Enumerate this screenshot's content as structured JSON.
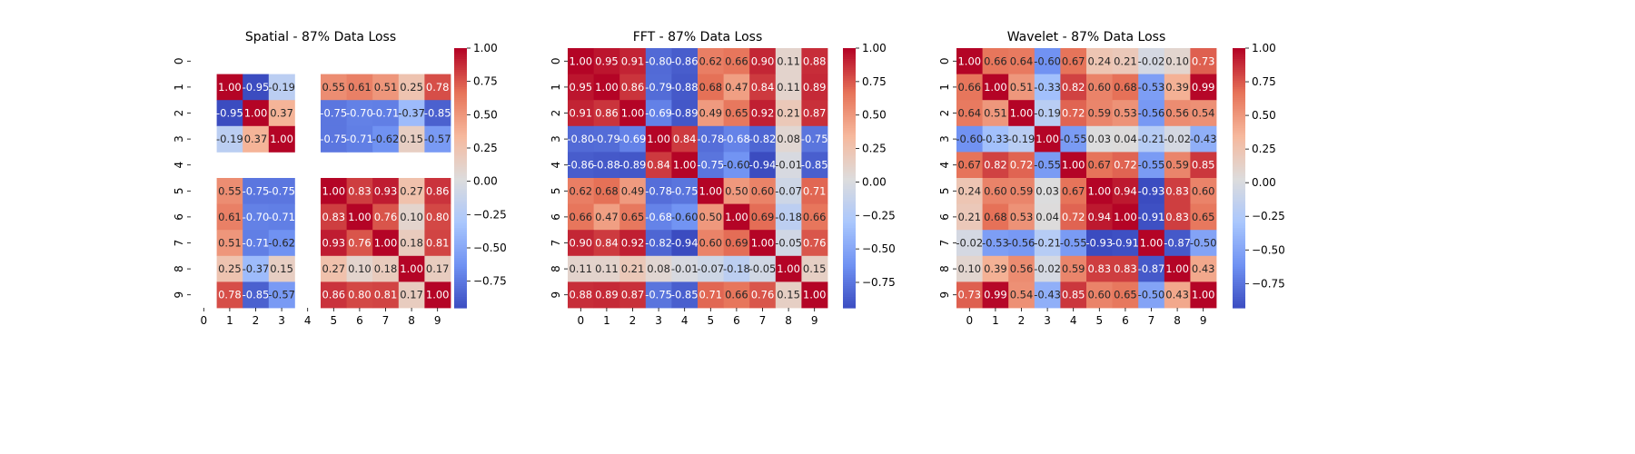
{
  "figure": {
    "background": "#ffffff",
    "colormap": "coolwarm",
    "colormap_stops": [
      "#3b4cc0",
      "#6f91f2",
      "#aac7fd",
      "#dddcdc",
      "#f6b89c",
      "#e67258",
      "#b40426"
    ]
  },
  "chart_data": [
    {
      "type": "heatmap",
      "title": "Spatial - 87% Data Loss",
      "x_tick_labels": [
        "0",
        "1",
        "2",
        "3",
        "4",
        "5",
        "6",
        "7",
        "8",
        "9"
      ],
      "y_tick_labels": [
        "0",
        "1",
        "2",
        "3",
        "4",
        "5",
        "6",
        "7",
        "8",
        "9"
      ],
      "annotation_format": "2 decimals",
      "vmin": -0.95,
      "vmax": 1.0,
      "colorbar_ticks": [
        -0.75,
        -0.5,
        -0.25,
        0.0,
        0.25,
        0.5,
        0.75,
        1.0
      ],
      "colorbar_tick_labels": [
        "−0.75",
        "−0.50",
        "−0.25",
        "0.00",
        "0.25",
        "0.50",
        "0.75",
        "1.00"
      ],
      "matrix": [
        [
          null,
          null,
          null,
          null,
          null,
          null,
          null,
          null,
          null,
          null
        ],
        [
          null,
          1.0,
          -0.95,
          -0.19,
          null,
          0.55,
          0.61,
          0.51,
          0.25,
          0.78
        ],
        [
          null,
          -0.95,
          1.0,
          0.37,
          null,
          -0.75,
          -0.7,
          -0.71,
          -0.37,
          -0.85
        ],
        [
          null,
          -0.19,
          0.37,
          1.0,
          null,
          -0.75,
          -0.71,
          -0.62,
          0.15,
          -0.57
        ],
        [
          null,
          null,
          null,
          null,
          null,
          null,
          null,
          null,
          null,
          null
        ],
        [
          null,
          0.55,
          -0.75,
          -0.75,
          null,
          1.0,
          0.83,
          0.93,
          0.27,
          0.86
        ],
        [
          null,
          0.61,
          -0.7,
          -0.71,
          null,
          0.83,
          1.0,
          0.76,
          0.1,
          0.8
        ],
        [
          null,
          0.51,
          -0.71,
          -0.62,
          null,
          0.93,
          0.76,
          1.0,
          0.18,
          0.81
        ],
        [
          null,
          0.25,
          -0.37,
          0.15,
          null,
          0.27,
          0.1,
          0.18,
          1.0,
          0.17
        ],
        [
          null,
          0.78,
          -0.85,
          -0.57,
          null,
          0.86,
          0.8,
          0.81,
          0.17,
          1.0
        ]
      ]
    },
    {
      "type": "heatmap",
      "title": "FFT - 87% Data Loss",
      "x_tick_labels": [
        "0",
        "1",
        "2",
        "3",
        "4",
        "5",
        "6",
        "7",
        "8",
        "9"
      ],
      "y_tick_labels": [
        "0",
        "1",
        "2",
        "3",
        "4",
        "5",
        "6",
        "7",
        "8",
        "9"
      ],
      "annotation_format": "2 decimals",
      "vmin": -0.94,
      "vmax": 1.0,
      "colorbar_ticks": [
        -0.75,
        -0.5,
        -0.25,
        0.0,
        0.25,
        0.5,
        0.75,
        1.0
      ],
      "colorbar_tick_labels": [
        "−0.75",
        "−0.50",
        "−0.25",
        "0.00",
        "0.25",
        "0.50",
        "0.75",
        "1.00"
      ],
      "matrix": [
        [
          1.0,
          0.95,
          0.91,
          -0.8,
          -0.86,
          0.62,
          0.66,
          0.9,
          0.11,
          0.88
        ],
        [
          0.95,
          1.0,
          0.86,
          -0.79,
          -0.88,
          0.68,
          0.47,
          0.84,
          0.11,
          0.89
        ],
        [
          0.91,
          0.86,
          1.0,
          -0.69,
          -0.89,
          0.49,
          0.65,
          0.92,
          0.21,
          0.87
        ],
        [
          -0.8,
          -0.79,
          -0.69,
          1.0,
          0.84,
          -0.78,
          -0.68,
          -0.82,
          0.08,
          -0.75
        ],
        [
          -0.86,
          -0.88,
          -0.89,
          0.84,
          1.0,
          -0.75,
          -0.6,
          -0.94,
          -0.01,
          -0.85
        ],
        [
          0.62,
          0.68,
          0.49,
          -0.78,
          -0.75,
          1.0,
          0.5,
          0.6,
          -0.07,
          0.71
        ],
        [
          0.66,
          0.47,
          0.65,
          -0.68,
          -0.6,
          0.5,
          1.0,
          0.69,
          -0.18,
          0.66
        ],
        [
          0.9,
          0.84,
          0.92,
          -0.82,
          -0.94,
          0.6,
          0.69,
          1.0,
          -0.05,
          0.76
        ],
        [
          0.11,
          0.11,
          0.21,
          0.08,
          -0.01,
          -0.07,
          -0.18,
          -0.05,
          1.0,
          0.15
        ],
        [
          0.88,
          0.89,
          0.87,
          -0.75,
          -0.85,
          0.71,
          0.66,
          0.76,
          0.15,
          1.0
        ]
      ]
    },
    {
      "type": "heatmap",
      "title": "Wavelet - 87% Data Loss",
      "x_tick_labels": [
        "0",
        "1",
        "2",
        "3",
        "4",
        "5",
        "6",
        "7",
        "8",
        "9"
      ],
      "y_tick_labels": [
        "0",
        "1",
        "2",
        "3",
        "4",
        "5",
        "6",
        "7",
        "8",
        "9"
      ],
      "annotation_format": "2 decimals",
      "vmin": -0.93,
      "vmax": 1.0,
      "colorbar_ticks": [
        -0.75,
        -0.5,
        -0.25,
        0.0,
        0.25,
        0.5,
        0.75,
        1.0
      ],
      "colorbar_tick_labels": [
        "−0.75",
        "−0.50",
        "−0.25",
        "0.00",
        "0.25",
        "0.50",
        "0.75",
        "1.00"
      ],
      "matrix": [
        [
          1.0,
          0.66,
          0.64,
          -0.6,
          0.67,
          0.24,
          0.21,
          -0.02,
          0.1,
          0.73
        ],
        [
          0.66,
          1.0,
          0.51,
          -0.33,
          0.82,
          0.6,
          0.68,
          -0.53,
          0.39,
          0.99
        ],
        [
          0.64,
          0.51,
          1.0,
          -0.19,
          0.72,
          0.59,
          0.53,
          -0.56,
          0.56,
          0.54
        ],
        [
          -0.6,
          -0.33,
          -0.19,
          1.0,
          -0.55,
          0.03,
          0.04,
          -0.21,
          -0.02,
          -0.43
        ],
        [
          0.67,
          0.82,
          0.72,
          -0.55,
          1.0,
          0.67,
          0.72,
          -0.55,
          0.59,
          0.85
        ],
        [
          0.24,
          0.6,
          0.59,
          0.03,
          0.67,
          1.0,
          0.94,
          -0.93,
          0.83,
          0.6
        ],
        [
          0.21,
          0.68,
          0.53,
          0.04,
          0.72,
          0.94,
          1.0,
          -0.91,
          0.83,
          0.65
        ],
        [
          -0.02,
          -0.53,
          -0.56,
          -0.21,
          -0.55,
          -0.93,
          -0.91,
          1.0,
          -0.87,
          -0.5
        ],
        [
          0.1,
          0.39,
          0.56,
          -0.02,
          0.59,
          0.83,
          0.83,
          -0.87,
          1.0,
          0.43
        ],
        [
          0.73,
          0.99,
          0.54,
          -0.43,
          0.85,
          0.6,
          0.65,
          -0.5,
          0.43,
          1.0
        ]
      ]
    }
  ]
}
